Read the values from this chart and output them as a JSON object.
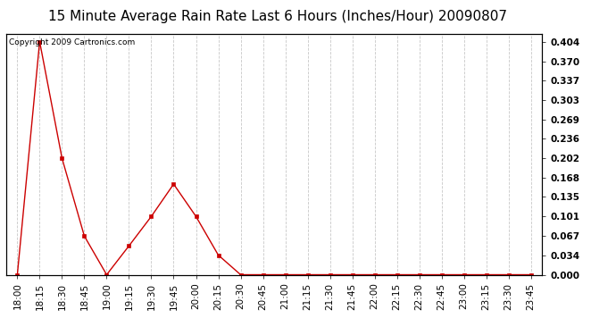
{
  "title": "15 Minute Average Rain Rate Last 6 Hours (Inches/Hour) 20090807",
  "copyright": "Copyright 2009 Cartronics.com",
  "background_color": "#ffffff",
  "plot_background": "#ffffff",
  "grid_color": "#c8c8c8",
  "line_color": "#cc0000",
  "marker_color": "#cc0000",
  "x_labels": [
    "18:00",
    "18:15",
    "18:30",
    "18:45",
    "19:00",
    "19:15",
    "19:30",
    "19:45",
    "20:00",
    "20:15",
    "20:30",
    "20:45",
    "21:00",
    "21:15",
    "21:30",
    "21:45",
    "22:00",
    "22:15",
    "22:30",
    "22:45",
    "23:00",
    "23:15",
    "23:30",
    "23:45"
  ],
  "y_values": [
    0.0,
    0.404,
    0.202,
    0.067,
    0.0,
    0.05,
    0.101,
    0.157,
    0.101,
    0.034,
    0.0,
    0.0,
    0.0,
    0.0,
    0.0,
    0.0,
    0.0,
    0.0,
    0.0,
    0.0,
    0.0,
    0.0,
    0.0,
    0.0
  ],
  "y_ticks": [
    0.0,
    0.034,
    0.067,
    0.101,
    0.135,
    0.168,
    0.202,
    0.236,
    0.269,
    0.303,
    0.337,
    0.37,
    0.404
  ],
  "ylim": [
    0.0,
    0.418
  ],
  "title_fontsize": 11,
  "tick_fontsize": 7.5,
  "copyright_fontsize": 6.5
}
